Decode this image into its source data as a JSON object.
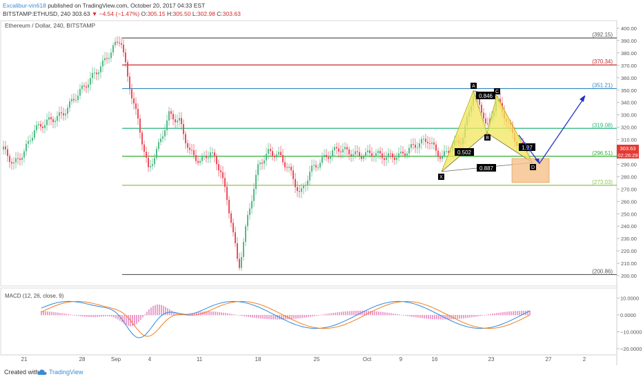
{
  "header": {
    "author": "Excalibur-vin618",
    "published_text": " published on TradingView.com, October 20, 2017 04:33 EST",
    "symbol": "BITSTAMP:ETHUSD, 240",
    "last": "303.63",
    "change": "▼ −4.54 (−1.47%)",
    "open_label": "O:",
    "open": "305.15",
    "high_label": "H:",
    "high": "305.50",
    "low_label": "L:",
    "low": "302.98",
    "close_label": "C:",
    "close": "303.63"
  },
  "main_pane": {
    "title": "Ethereum / Dollar, 240, BITSTAMP",
    "current_price_badge": "303.63",
    "countdown_badge": "02:26:29"
  },
  "price_axis": {
    "ticks": [
      "400.00",
      "390.00",
      "380.00",
      "370.00",
      "360.00",
      "350.00",
      "340.00",
      "330.00",
      "320.00",
      "310.00",
      "300.00",
      "290.00",
      "280.00",
      "270.00",
      "260.00",
      "250.00",
      "240.00",
      "230.00",
      "220.00",
      "210.00",
      "200.00"
    ]
  },
  "levels": [
    {
      "label": "(392.15)",
      "value": 392.15,
      "color": "#555555"
    },
    {
      "label": "(370.34)",
      "value": 370.34,
      "color": "#c62828"
    },
    {
      "label": "(351.21)",
      "value": 351.21,
      "color": "#2e86c1"
    },
    {
      "label": "(319.08)",
      "value": 319.08,
      "color": "#26b37a"
    },
    {
      "label": "(296.51)",
      "value": 296.51,
      "color": "#2fae2f"
    },
    {
      "label": "(273.03)",
      "value": 273.03,
      "color": "#8bc34a"
    },
    {
      "label": "(200.86)",
      "value": 200.86,
      "color": "#555555"
    }
  ],
  "pattern": {
    "points": {
      "X": "X",
      "A": "A",
      "B": "B",
      "C": "C",
      "D": "D"
    },
    "ratios": [
      "0.502",
      "0.846",
      "1.97",
      "0.887"
    ],
    "colors": {
      "fill": "#f2e55c",
      "zone": "#f5c08a",
      "projection": "#2233cc"
    }
  },
  "macd_pane": {
    "title": "MACD (12, 26, close, 9)",
    "ticks": [
      "10.0000",
      "0.0000",
      "−10.0000",
      "−20.0000"
    ]
  },
  "time_axis": {
    "labels": [
      "21",
      "28",
      "Sep",
      "4",
      "11",
      "18",
      "25",
      "Oct",
      "9",
      "16",
      "23",
      "27",
      "2"
    ]
  },
  "footer": {
    "created_with": "Created with",
    "brand": "TradingView"
  }
}
